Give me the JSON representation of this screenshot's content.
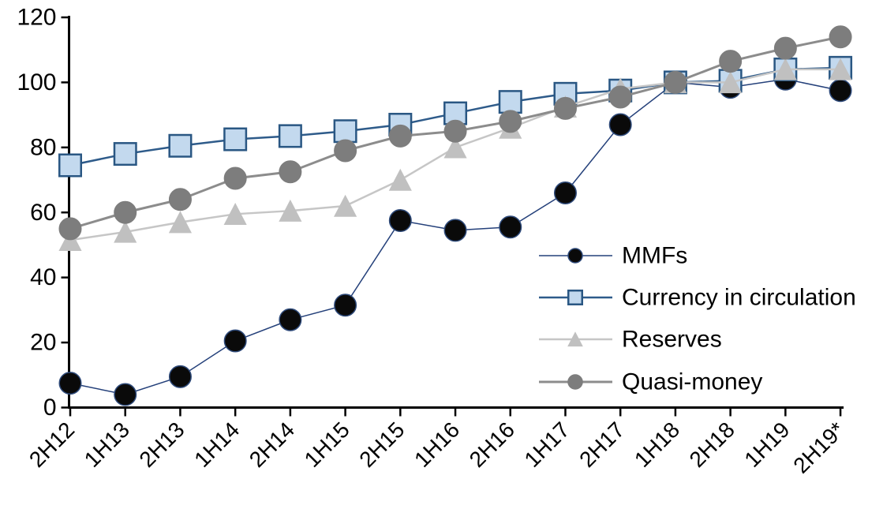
{
  "chart_data": {
    "type": "line",
    "title": "",
    "xlabel": "",
    "ylabel": "",
    "ylim": [
      0,
      120
    ],
    "yticks": [
      0,
      20,
      40,
      60,
      80,
      100,
      120
    ],
    "grid": false,
    "legend_position": "inside-right",
    "categories": [
      "2H12",
      "1H13",
      "2H13",
      "1H14",
      "2H14",
      "1H15",
      "2H15",
      "1H16",
      "2H16",
      "1H17",
      "2H17",
      "1H18",
      "2H18",
      "1H19",
      "2H19*"
    ],
    "series": [
      {
        "name": "MMFs",
        "marker": "circle",
        "values": [
          7.5,
          4,
          9.5,
          20.5,
          27,
          31.5,
          57.5,
          54.5,
          55.5,
          66,
          87,
          100,
          98.5,
          101,
          97.5
        ],
        "line_color": "#24407a",
        "marker_fill": "#0a0a0a",
        "marker_stroke": "#2e4a7a",
        "line_width": 1.5
      },
      {
        "name": "Currency in circulation",
        "marker": "square",
        "values": [
          74.5,
          78,
          80.5,
          82.5,
          83.5,
          85,
          87,
          90.5,
          94,
          96.5,
          97.5,
          100,
          100.5,
          104,
          104.5
        ],
        "line_color": "#2e5b8a",
        "marker_fill": "#c3d9ee",
        "marker_stroke": "#2a5783",
        "line_width": 2.5
      },
      {
        "name": "Reserves",
        "marker": "triangle",
        "values": [
          51.5,
          54,
          57,
          59.5,
          60.5,
          62,
          70,
          80,
          86,
          92.5,
          98,
          100,
          100,
          104,
          104
        ],
        "line_color": "#c6c6c6",
        "marker_fill": "#c0c0c0",
        "marker_stroke": "#c0c0c0",
        "line_width": 2.5
      },
      {
        "name": "Quasi-money",
        "marker": "circle",
        "values": [
          55,
          60,
          64,
          70.5,
          72.5,
          79,
          83.5,
          85,
          88,
          92,
          95.5,
          100,
          106.5,
          110.5,
          114
        ],
        "line_color": "#8c8c8c",
        "marker_fill": "#7d7d7d",
        "marker_stroke": "#7d7d7d",
        "line_width": 3
      }
    ],
    "axis_color": "#000000"
  }
}
